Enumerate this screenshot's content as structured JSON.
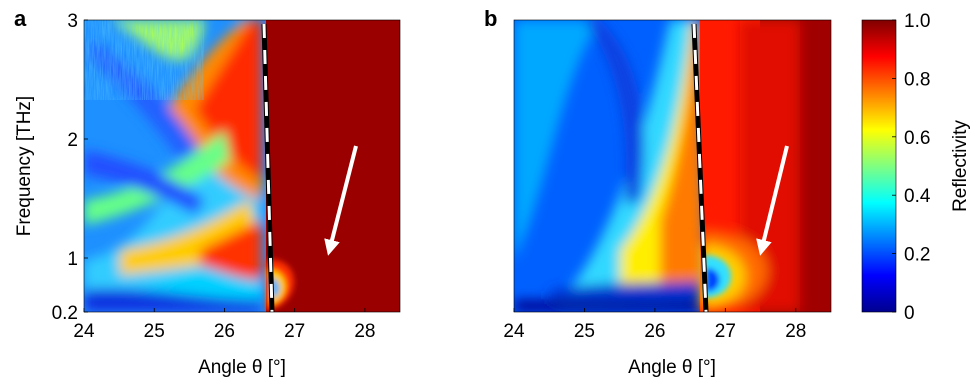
{
  "chart_data": [
    {
      "type": "heatmap",
      "panel_label": "a",
      "xlabel": "Angle θ [°]",
      "ylabel": "Frequency [THz]",
      "xlim": [
        24,
        28.5
      ],
      "ylim": [
        0.2,
        3
      ],
      "xticks": [
        24,
        25,
        26,
        27,
        28
      ],
      "yticks": [
        0.2,
        1,
        2,
        3
      ],
      "data_kind": "measured",
      "boundary_line": {
        "x_top": 26.55,
        "x_bottom": 26.65
      },
      "arrow": {
        "from": [
          27.9,
          1.85
        ],
        "to": [
          27.4,
          0.95
        ]
      }
    },
    {
      "type": "heatmap",
      "panel_label": "b",
      "xlabel": "Angle θ [°]",
      "ylabel": "",
      "xlim": [
        24,
        28.5
      ],
      "ylim": [
        0.2,
        3
      ],
      "xticks": [
        24,
        25,
        26,
        27,
        28
      ],
      "data_kind": "simulated",
      "boundary_line": {
        "x_top": 26.55,
        "x_bottom": 26.7
      },
      "arrow": {
        "from": [
          27.9,
          1.85
        ],
        "to": [
          27.4,
          0.95
        ]
      }
    }
  ],
  "colorbar": {
    "label": "Reflectivity",
    "range": [
      0,
      1
    ],
    "ticks": [
      "0",
      "0.2",
      "0.4",
      "0.6",
      "0.8",
      "1.0"
    ],
    "tick_values": [
      0,
      0.2,
      0.4,
      0.6,
      0.8,
      1.0
    ],
    "colormap": [
      "#00008f",
      "#0000ff",
      "#0080ff",
      "#00ffff",
      "#80ff80",
      "#ffff00",
      "#ff8000",
      "#ff0000",
      "#800000"
    ]
  }
}
